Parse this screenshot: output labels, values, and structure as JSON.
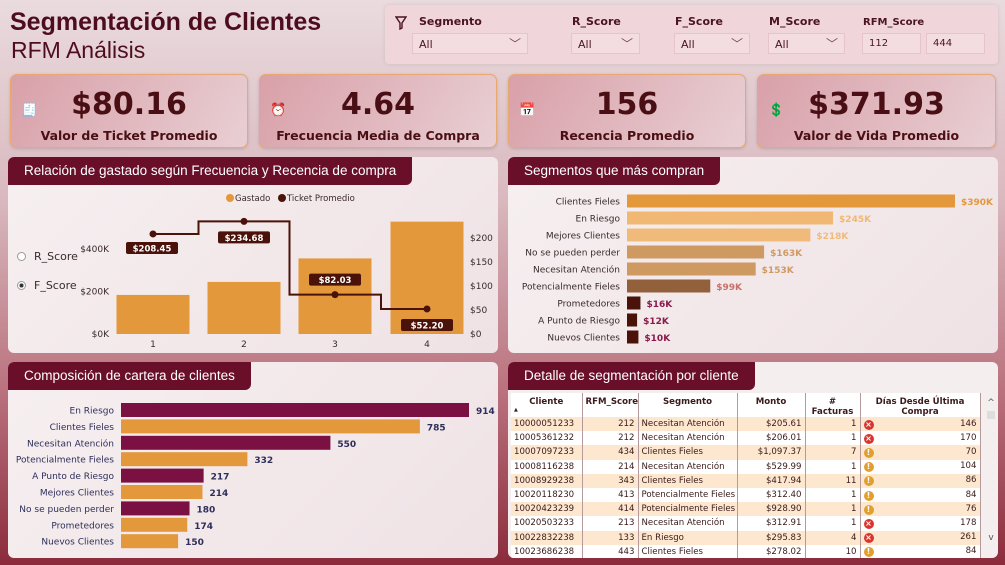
{
  "header": {
    "title": "Segmentación de Clientes",
    "subtitle": "RFM Análisis"
  },
  "filters": {
    "icon": "filter-icon",
    "items": [
      {
        "label": "Segmento",
        "value": "All"
      },
      {
        "label": "R_Score",
        "value": "All"
      },
      {
        "label": "F_Score",
        "value": "All"
      },
      {
        "label": "M_Score",
        "value": "All"
      }
    ],
    "rfm": {
      "label": "RFM_Score",
      "min": "112",
      "max": "444"
    }
  },
  "kpis": [
    {
      "value": "$80.16",
      "label": "Valor de Ticket Promedio",
      "icon": "receipt-icon"
    },
    {
      "value": "4.64",
      "label": "Frecuencia Media de Compra",
      "icon": "alarm-clock-icon"
    },
    {
      "value": "156",
      "label": "Recencia Promedio",
      "icon": "calendar-icon"
    },
    {
      "value": "$371.93",
      "label": "Valor de Vida Promedio",
      "icon": "money-icon"
    }
  ],
  "colors": {
    "maroon": "#690f2a",
    "orange": "#e3983c",
    "purple": "#7b1142",
    "dark": "#4a1208"
  },
  "panels": {
    "combo": "Relación de gastado según Frecuencia y Recencia de compra",
    "segments": "Segmentos que más compran",
    "composition": "Composición de cartera de clientes",
    "detail": "Detalle de segmentación por cliente"
  },
  "toggle": {
    "options": [
      "R_Score",
      "F_Score"
    ],
    "selected": "F_Score"
  },
  "chart_data": [
    {
      "type": "bar+line",
      "legend": [
        "Gastado",
        "Ticket Promedio"
      ],
      "legend_position": "top",
      "categories": [
        "1",
        "2",
        "3",
        "4"
      ],
      "series": [
        {
          "name": "Gastado",
          "values": [
            186000,
            248000,
            360000,
            535000
          ],
          "axis": "left"
        },
        {
          "name": "Ticket Promedio",
          "values": [
            208.45,
            234.68,
            82.03,
            52.2
          ],
          "labels": [
            "$208.45",
            "$234.68",
            "$82.03",
            "$52.20"
          ],
          "axis": "right"
        }
      ],
      "left_ticks": [
        "$0K",
        "$200K",
        "$400K"
      ],
      "right_ticks": [
        "$0",
        "$50",
        "$100",
        "$150",
        "$200"
      ]
    },
    {
      "type": "bar",
      "orientation": "horizontal",
      "categories": [
        "Clientes Fieles",
        "En Riesgo",
        "Mejores Clientes",
        "No se pueden perder",
        "Necesitan Atención",
        "Potencialmente Fieles",
        "Prometedores",
        "A Punto de Riesgo",
        "Nuevos Clientes"
      ],
      "values": [
        390,
        245,
        218,
        163,
        153,
        99,
        16,
        12,
        10
      ],
      "labels": [
        "$390K",
        "$245K",
        "$218K",
        "$163K",
        "$153K",
        "$99K",
        "$16K",
        "$12K",
        "$10K"
      ],
      "colors": [
        "#e3983c",
        "#f0b872",
        "#f0bb7a",
        "#cf9a62",
        "#cf9a62",
        "#92603b",
        "#4a1208",
        "#4a1208",
        "#4a1208"
      ],
      "label_colors": [
        "#e3983c",
        "#f0b872",
        "#f0bb7a",
        "#cf9a62",
        "#cf9a62",
        "#c8706a",
        "#8a1a4a",
        "#8a1a4a",
        "#8a1a4a"
      ]
    },
    {
      "type": "bar",
      "orientation": "horizontal",
      "categories": [
        "En Riesgo",
        "Clientes Fieles",
        "Necesitan Atención",
        "Potencialmente Fieles",
        "A Punto de Riesgo",
        "Mejores Clientes",
        "No se pueden perder",
        "Prometedores",
        "Nuevos Clientes"
      ],
      "values": [
        914,
        785,
        550,
        332,
        217,
        214,
        180,
        174,
        150
      ],
      "colors": [
        "#7b1142",
        "#e3983c",
        "#7b1142",
        "#e3983c",
        "#7b1142",
        "#e3983c",
        "#7b1142",
        "#e3983c",
        "#e3983c"
      ]
    }
  ],
  "table": {
    "columns": [
      "Cliente",
      "RFM_Score",
      "Segmento",
      "Monto",
      "# Facturas",
      "Días Desde Última Compra"
    ],
    "sort": "Cliente ascending",
    "rows": [
      [
        "10000051233",
        "212",
        "Necesitan Atención",
        "$205.61",
        "1",
        "bad",
        "146"
      ],
      [
        "10005361232",
        "212",
        "Necesitan Atención",
        "$206.01",
        "1",
        "bad",
        "170"
      ],
      [
        "10007097233",
        "434",
        "Clientes Fieles",
        "$1,097.37",
        "7",
        "warn",
        "70"
      ],
      [
        "10008116238",
        "214",
        "Necesitan Atención",
        "$529.99",
        "1",
        "warn",
        "104"
      ],
      [
        "10008929238",
        "343",
        "Clientes Fieles",
        "$417.94",
        "11",
        "warn",
        "86"
      ],
      [
        "10020118230",
        "413",
        "Potencialmente Fieles",
        "$312.40",
        "1",
        "warn",
        "84"
      ],
      [
        "10020423239",
        "414",
        "Potencialmente Fieles",
        "$928.90",
        "1",
        "warn",
        "76"
      ],
      [
        "10020503233",
        "213",
        "Necesitan Atención",
        "$312.91",
        "1",
        "bad",
        "178"
      ],
      [
        "10022832238",
        "133",
        "En Riesgo",
        "$295.83",
        "4",
        "bad",
        "261"
      ],
      [
        "10023686238",
        "443",
        "Clientes Fieles",
        "$278.02",
        "10",
        "warn",
        "84"
      ]
    ]
  }
}
